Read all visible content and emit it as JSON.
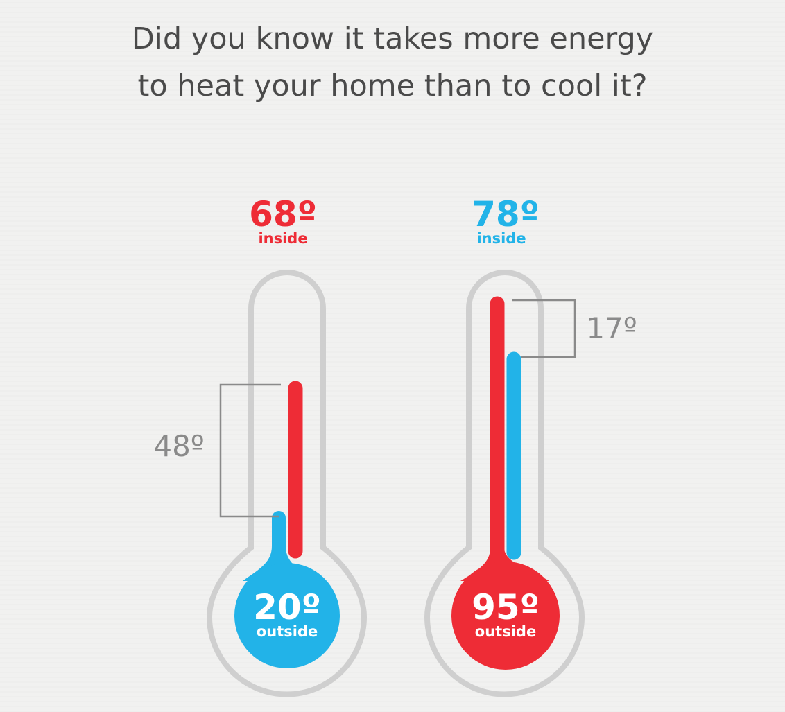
{
  "headline": {
    "line1": "Did you know it takes more energy",
    "line2": "to heat your home than to cool it?"
  },
  "colors": {
    "hot": "#ee2c36",
    "cold": "#22b3e8",
    "outline": "#cfcfcf",
    "bracket": "#8a8a8a",
    "text": "#4a4a4a"
  },
  "winter": {
    "inside_value": "68º",
    "inside_label": "inside",
    "outside_value": "20º",
    "outside_label": "outside",
    "difference": "48º"
  },
  "summer": {
    "inside_value": "78º",
    "inside_label": "inside",
    "outside_value": "95º",
    "outside_label": "outside",
    "difference": "17º"
  }
}
